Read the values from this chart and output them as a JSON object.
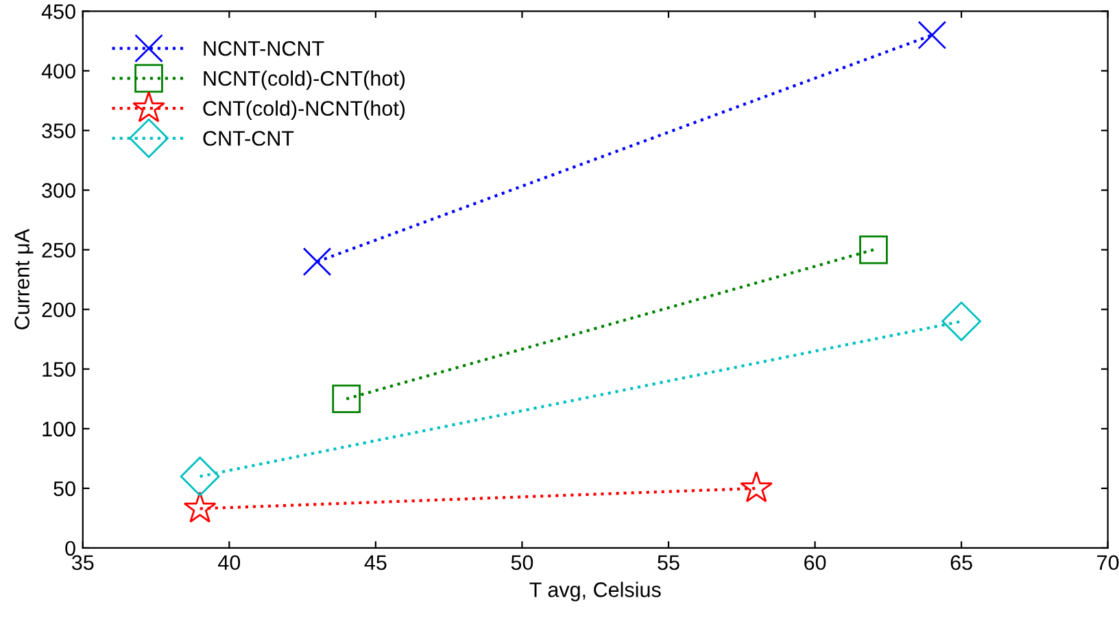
{
  "chart_data": {
    "type": "line",
    "xlabel": "T avg, Celsius",
    "ylabel": "Current μA",
    "xlim": [
      35,
      70
    ],
    "xticks": [
      35,
      40,
      45,
      50,
      55,
      60,
      65,
      70
    ],
    "ylim": [
      0,
      450
    ],
    "yticks": [
      0,
      50,
      100,
      150,
      200,
      250,
      300,
      350,
      400,
      450
    ],
    "grid": false,
    "legend": "top left",
    "line_style": "dotted",
    "series": [
      {
        "name": "NCNT-NCNT",
        "color": "#0000ff",
        "marker": "cross",
        "x": [
          43,
          64
        ],
        "values": [
          240,
          430
        ]
      },
      {
        "name": "NCNT(cold)-CNT(hot)",
        "color": "#008000",
        "marker": "square",
        "x": [
          44,
          62
        ],
        "values": [
          125,
          250
        ]
      },
      {
        "name": "CNT(cold)-NCNT(hot)",
        "color": "#ff0000",
        "marker": "star",
        "x": [
          39,
          58
        ],
        "values": [
          33,
          50
        ]
      },
      {
        "name": "CNT-CNT",
        "color": "#00bfbf",
        "marker": "diamond",
        "x": [
          39,
          65
        ],
        "values": [
          60,
          190
        ]
      }
    ]
  }
}
